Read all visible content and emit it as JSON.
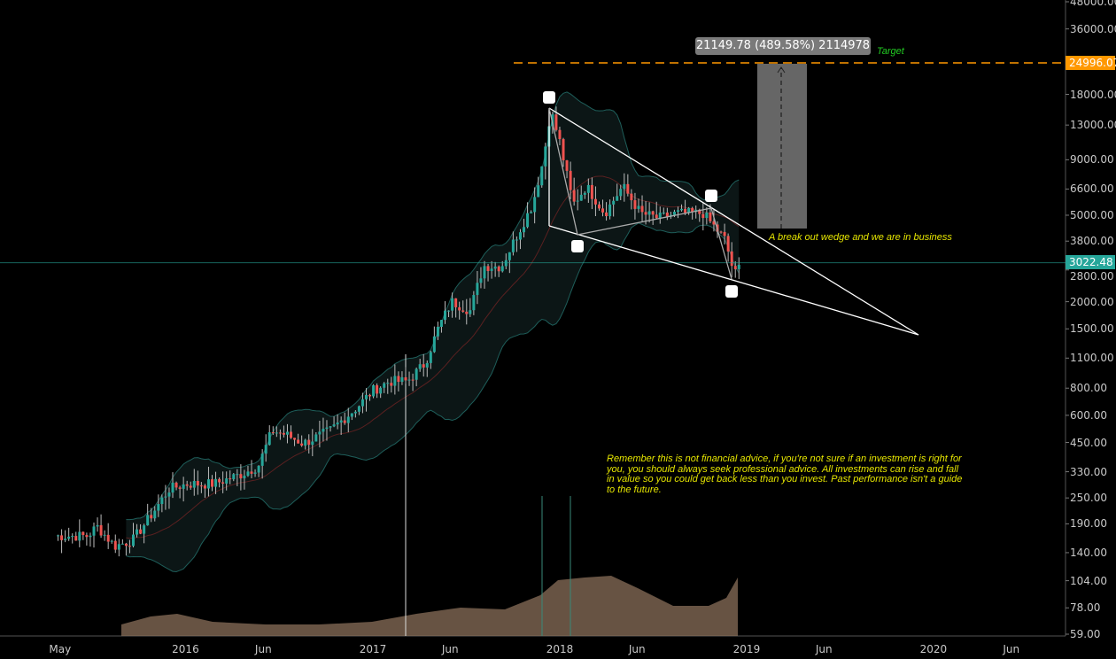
{
  "chart_data": {
    "type": "candlestick",
    "scale": "log",
    "ylim": [
      59,
      48000
    ],
    "y_ticks": [
      "48000.00",
      "36000.00",
      "18000.00",
      "13000.00",
      "9000.00",
      "6600.00",
      "5000.00",
      "3800.00",
      "2800.00",
      "2000.00",
      "1500.00",
      "1100.00",
      "800.00",
      "600.00",
      "450.00",
      "330.00",
      "250.00",
      "190.00",
      "140.00",
      "104.00",
      "78.00",
      "59.00"
    ],
    "x_ticks": [
      {
        "label": "May",
        "date": "2015-05-01"
      },
      {
        "label": "2016",
        "date": "2016-01-01"
      },
      {
        "label": "Jun",
        "date": "2016-06-01"
      },
      {
        "label": "2017",
        "date": "2017-01-01"
      },
      {
        "label": "Jun",
        "date": "2017-06-01"
      },
      {
        "label": "2018",
        "date": "2018-01-01"
      },
      {
        "label": "Jun",
        "date": "2018-06-01"
      },
      {
        "label": "2019",
        "date": "2019-01-01"
      },
      {
        "label": "Jun",
        "date": "2019-06-01"
      },
      {
        "label": "2020",
        "date": "2020-01-01"
      },
      {
        "label": "Jun",
        "date": "2020-06-01"
      }
    ],
    "price_path": [
      [
        "2015-04-20",
        167
      ],
      [
        "2015-06-24",
        167
      ],
      [
        "2015-07-12",
        185
      ],
      [
        "2015-08-16",
        150
      ],
      [
        "2015-09-20",
        160
      ],
      [
        "2015-10-25",
        207
      ],
      [
        "2015-11-30",
        275
      ],
      [
        "2016-01-04",
        290
      ],
      [
        "2016-02-25",
        290
      ],
      [
        "2016-04-17",
        320
      ],
      [
        "2016-05-22",
        350
      ],
      [
        "2016-06-18",
        510
      ],
      [
        "2016-07-14",
        490
      ],
      [
        "2016-08-18",
        445
      ],
      [
        "2016-10-09",
        510
      ],
      [
        "2016-11-30",
        650
      ],
      [
        "2017-01-01",
        780
      ],
      [
        "2017-02-02",
        860
      ],
      [
        "2017-03-09",
        860
      ],
      [
        "2017-04-13",
        1040
      ],
      [
        "2017-05-09",
        1520
      ],
      [
        "2017-06-04",
        2000
      ],
      [
        "2017-07-10",
        1820
      ],
      [
        "2017-08-05",
        2920
      ],
      [
        "2017-09-09",
        2900
      ],
      [
        "2017-10-05",
        3860
      ],
      [
        "2017-11-09",
        5600
      ],
      [
        "2017-11-30",
        9000
      ],
      [
        "2017-12-14",
        15200
      ],
      [
        "2018-01-01",
        10900
      ],
      [
        "2018-01-27",
        5600
      ],
      [
        "2018-02-22",
        6800
      ],
      [
        "2018-03-30",
        5100
      ],
      [
        "2018-05-04",
        6800
      ],
      [
        "2018-06-08",
        5100
      ],
      [
        "2018-07-13",
        4850
      ],
      [
        "2018-08-17",
        5100
      ],
      [
        "2018-10-08",
        5100
      ],
      [
        "2018-11-20",
        3860
      ],
      [
        "2018-12-08",
        2650
      ],
      [
        "2018-12-22",
        3022.48
      ]
    ],
    "last_price": "3022.48",
    "target_price": "24996.07",
    "colors": {
      "up": "#26a69a",
      "down": "#ef5350",
      "target": "#ff9800",
      "last": "#26a69a",
      "bands": "#1e5e5a",
      "volume": "#8a6f5a"
    }
  },
  "annotations": {
    "measure": "21149.78 (489.58%) 2114978",
    "target_label": "Target",
    "wedge_note": "A break out wedge and we are in business",
    "disclaimer": "Remember this is not financial advice, if you're not sure if an investment is right for you, you should always seek professional advice. All investments can rise and fall in value so you could get back less than you invest. Past performance isn't a guide to the future."
  }
}
